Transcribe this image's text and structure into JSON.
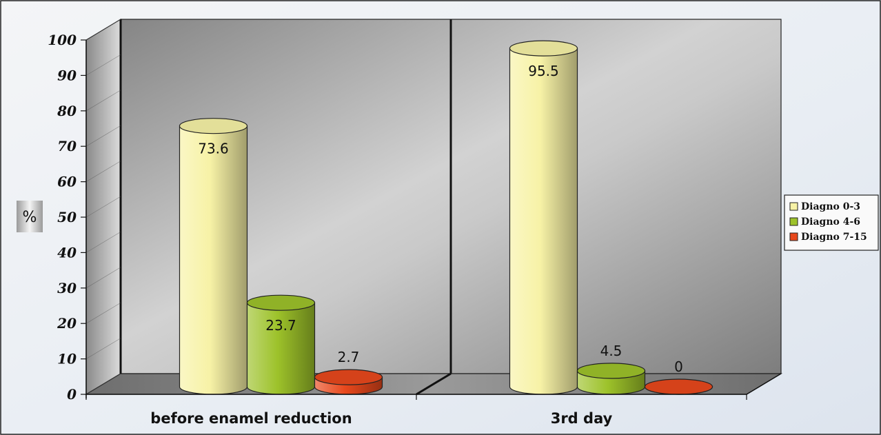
{
  "chart_data": {
    "type": "bar",
    "categories": [
      "before enamel reduction",
      "3rd day"
    ],
    "series": [
      {
        "name": "Diagno 0-3",
        "values": [
          73.6,
          95.5
        ],
        "color": "#f7f2a6"
      },
      {
        "name": "Diagno 4-6",
        "values": [
          23.7,
          4.5
        ],
        "color": "#9dc22a"
      },
      {
        "name": "Diagno 7-15",
        "values": [
          2.7,
          0
        ],
        "color": "#e8481c"
      }
    ],
    "data_labels": [
      [
        "73.6",
        "95.5"
      ],
      [
        "23.7",
        "4.5"
      ],
      [
        "2.7",
        "0"
      ]
    ],
    "yticks": [
      "0",
      "10",
      "20",
      "30",
      "40",
      "50",
      "60",
      "70",
      "80",
      "90",
      "100"
    ],
    "ylim": [
      0,
      100
    ],
    "ylabel": "%",
    "legend_position": "right",
    "style": "3d-cylinder"
  }
}
